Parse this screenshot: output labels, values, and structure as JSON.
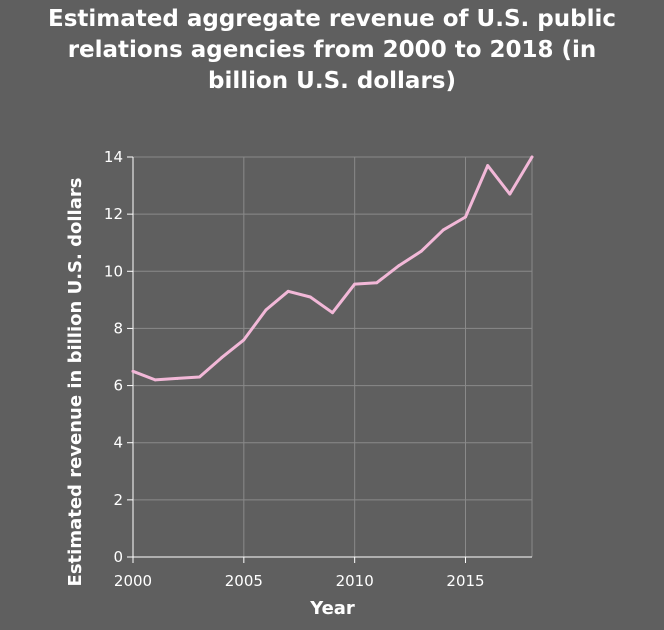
{
  "chart_data": {
    "type": "line",
    "title": "Estimated aggregate revenue of U.S. public\nrelations agencies from 2000 to 2018 (in\nbillion U.S. dollars)",
    "xlabel": "Year",
    "ylabel": "Estimated revenue in billion U.S. dollars",
    "xlim": [
      2000,
      2018
    ],
    "ylim": [
      0,
      14
    ],
    "x_ticks": [
      2000,
      2005,
      2010,
      2015
    ],
    "x_tick_labels": [
      "2000",
      "2005",
      "2010",
      "2015"
    ],
    "y_ticks": [
      0,
      2,
      4,
      6,
      8,
      10,
      12,
      14
    ],
    "y_tick_labels": [
      "0",
      "2",
      "4",
      "6",
      "8",
      "10",
      "12",
      "14"
    ],
    "grid": true,
    "legend": "none",
    "background_color": "#5f5f5f",
    "grid_color": "#8a8a8a",
    "line_color": "#f2b8d8",
    "series": [
      {
        "x": [
          2000,
          2001,
          2002,
          2003,
          2004,
          2005,
          2006,
          2007,
          2008,
          2009,
          2010,
          2011,
          2012,
          2013,
          2014,
          2015,
          2016,
          2017,
          2018
        ],
        "values": [
          6.5,
          6.2,
          6.25,
          6.3,
          6.98,
          7.6,
          8.65,
          9.3,
          9.1,
          8.55,
          9.55,
          9.6,
          10.2,
          10.7,
          11.45,
          11.9,
          13.7,
          12.7,
          14.0
        ]
      }
    ]
  }
}
